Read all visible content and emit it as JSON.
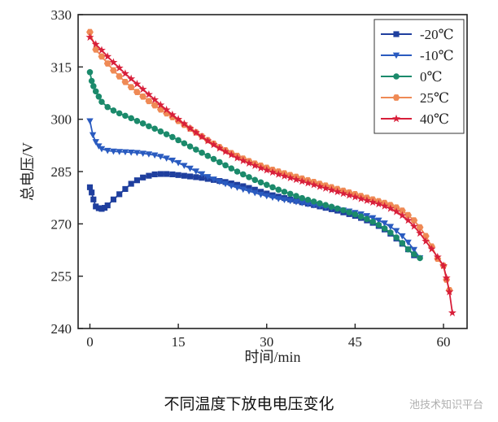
{
  "caption": "不同温度下放电电压变化",
  "watermark": "池技术知识平台",
  "chart_data": {
    "type": "line",
    "xlabel": "时间/min",
    "ylabel": "总电压/V",
    "xlim": [
      -2,
      64
    ],
    "ylim": [
      240,
      330
    ],
    "xticks": [
      0,
      15,
      30,
      45,
      60
    ],
    "yticks": [
      240,
      255,
      270,
      285,
      300,
      315,
      330
    ],
    "legend_position": "top-right",
    "series": [
      {
        "name": "-20℃",
        "color": "#1f3f9e",
        "marker": "square",
        "x": [
          0,
          0.3,
          0.6,
          1,
          1.5,
          2,
          2.5,
          3,
          4,
          5,
          6,
          7,
          8,
          9,
          10,
          11,
          12,
          13,
          14,
          15,
          16,
          17,
          18,
          19,
          20,
          21,
          22,
          23,
          24,
          25,
          26,
          27,
          28,
          29,
          30,
          31,
          32,
          33,
          34,
          35,
          36,
          37,
          38,
          39,
          40,
          41,
          42,
          43,
          44,
          45,
          46,
          47,
          48,
          49,
          50,
          51,
          52,
          53,
          54,
          55
        ],
        "y": [
          280.5,
          279,
          277,
          275,
          274.5,
          274.3,
          274.6,
          275.3,
          277,
          278.5,
          280,
          281.5,
          282.5,
          283.3,
          283.8,
          284.2,
          284.3,
          284.3,
          284.2,
          284,
          283.8,
          283.6,
          283.4,
          283.2,
          282.9,
          282.6,
          282.3,
          282,
          281.6,
          281.2,
          280.8,
          280.3,
          279.8,
          279.2,
          278.7,
          278.2,
          277.8,
          277.4,
          277,
          276.6,
          276.2,
          275.8,
          275.4,
          275,
          274.6,
          274.2,
          273.8,
          273.3,
          272.8,
          272.3,
          271.7,
          271,
          270.3,
          269.4,
          268.4,
          267.2,
          265.8,
          264.3,
          262.7,
          261
        ]
      },
      {
        "name": "-10℃",
        "color": "#2a5bc0",
        "marker": "triangle-down",
        "x": [
          0,
          0.5,
          1,
          1.5,
          2,
          3,
          4,
          5,
          6,
          7,
          8,
          9,
          10,
          11,
          12,
          13,
          14,
          15,
          16,
          17,
          18,
          19,
          20,
          21,
          22,
          23,
          24,
          25,
          26,
          27,
          28,
          29,
          30,
          31,
          32,
          33,
          34,
          35,
          36,
          37,
          38,
          39,
          40,
          41,
          42,
          43,
          44,
          45,
          46,
          47,
          48,
          49,
          50,
          51,
          52,
          53,
          54,
          55,
          56
        ],
        "y": [
          299.5,
          295.5,
          293.5,
          292.3,
          291.5,
          291,
          290.8,
          290.7,
          290.6,
          290.5,
          290.4,
          290.2,
          290,
          289.7,
          289.3,
          288.8,
          288.2,
          287.5,
          286.7,
          285.9,
          285.1,
          284.3,
          283.5,
          282.8,
          282.1,
          281.5,
          280.9,
          280.4,
          279.9,
          279.4,
          278.9,
          278.4,
          278,
          277.6,
          277.2,
          276.9,
          276.6,
          276.3,
          276,
          275.7,
          275.4,
          275.1,
          274.8,
          274.5,
          274.2,
          273.9,
          273.6,
          273.2,
          272.8,
          272.3,
          271.7,
          271,
          270.2,
          269.2,
          268,
          266.5,
          264.7,
          262.6,
          260.2
        ]
      },
      {
        "name": "0℃",
        "color": "#1b8a6b",
        "marker": "circle",
        "x": [
          0,
          0.3,
          0.6,
          1,
          1.5,
          2,
          3,
          4,
          5,
          6,
          7,
          8,
          9,
          10,
          11,
          12,
          13,
          14,
          15,
          16,
          17,
          18,
          19,
          20,
          21,
          22,
          23,
          24,
          25,
          26,
          27,
          28,
          29,
          30,
          31,
          32,
          33,
          34,
          35,
          36,
          37,
          38,
          39,
          40,
          41,
          42,
          43,
          44,
          45,
          46,
          47,
          48,
          49,
          50,
          51,
          52,
          53,
          54,
          55,
          56
        ],
        "y": [
          313.5,
          311,
          309.5,
          308,
          306.5,
          305,
          303.5,
          302.5,
          301.7,
          301,
          300.3,
          299.5,
          298.8,
          298,
          297.3,
          296.5,
          295.7,
          294.9,
          294,
          293.1,
          292.2,
          291.3,
          290.4,
          289.5,
          288.6,
          287.7,
          286.8,
          285.9,
          285,
          284.2,
          283.4,
          282.6,
          281.9,
          281.2,
          280.5,
          279.8,
          279.2,
          278.6,
          278,
          277.4,
          276.9,
          276.4,
          275.9,
          275.4,
          274.9,
          274.4,
          273.9,
          273.3,
          272.7,
          272.1,
          271.4,
          270.6,
          269.7,
          268.7,
          267.5,
          266.1,
          264.5,
          262.7,
          261.3,
          260.2
        ]
      },
      {
        "name": "25℃",
        "color": "#ef8a55",
        "marker": "hexagon",
        "x": [
          0,
          1,
          2,
          3,
          4,
          5,
          6,
          7,
          8,
          9,
          10,
          11,
          12,
          13,
          14,
          15,
          16,
          17,
          18,
          19,
          20,
          21,
          22,
          23,
          24,
          25,
          26,
          27,
          28,
          29,
          30,
          31,
          32,
          33,
          34,
          35,
          36,
          37,
          38,
          39,
          40,
          41,
          42,
          43,
          44,
          45,
          46,
          47,
          48,
          49,
          50,
          51,
          52,
          53,
          54,
          55,
          56,
          57,
          58,
          59,
          60,
          60.5,
          61
        ],
        "y": [
          325,
          320,
          318,
          316,
          314,
          312.3,
          310.7,
          309.2,
          307.8,
          306.5,
          305.2,
          304,
          302.8,
          301.7,
          300.6,
          299.5,
          298.4,
          297.3,
          296.2,
          295.1,
          294,
          293,
          292,
          291.1,
          290.3,
          289.5,
          288.7,
          288,
          287.3,
          286.7,
          286.1,
          285.5,
          285,
          284.5,
          284,
          283.5,
          283,
          282.5,
          282,
          281.5,
          281,
          280.5,
          280,
          279.5,
          279,
          278.5,
          278,
          277.5,
          277,
          276.5,
          276,
          275.4,
          274.7,
          273.8,
          272.5,
          271,
          269,
          266.5,
          263.5,
          260,
          258,
          254,
          251
        ]
      },
      {
        "name": "40℃",
        "color": "#d81f3a",
        "marker": "star",
        "x": [
          0,
          1,
          2,
          3,
          4,
          5,
          6,
          7,
          8,
          9,
          10,
          11,
          12,
          13,
          14,
          15,
          16,
          17,
          18,
          19,
          20,
          21,
          22,
          23,
          24,
          25,
          26,
          27,
          28,
          29,
          30,
          31,
          32,
          33,
          34,
          35,
          36,
          37,
          38,
          39,
          40,
          41,
          42,
          43,
          44,
          45,
          46,
          47,
          48,
          49,
          50,
          51,
          52,
          53,
          54,
          55,
          56,
          57,
          58,
          59,
          60,
          60.5,
          61,
          61.5
        ],
        "y": [
          323.5,
          321.5,
          319.8,
          318,
          316.3,
          314.7,
          313.1,
          311.6,
          310.1,
          308.6,
          307.1,
          305.6,
          304.1,
          302.7,
          301.3,
          300,
          298.7,
          297.4,
          296.2,
          295,
          293.8,
          292.7,
          291.7,
          290.7,
          289.8,
          288.9,
          288.1,
          287.4,
          286.7,
          286,
          285.4,
          284.8,
          284.2,
          283.7,
          283.2,
          282.7,
          282.2,
          281.7,
          281.2,
          280.7,
          280.2,
          279.7,
          279.2,
          278.7,
          278.2,
          277.7,
          277.2,
          276.7,
          276.2,
          275.7,
          275.1,
          274.4,
          273.5,
          272.4,
          271,
          269.3,
          267.3,
          265,
          262.8,
          260.5,
          258,
          254.5,
          250.5,
          244.5
        ]
      }
    ]
  }
}
